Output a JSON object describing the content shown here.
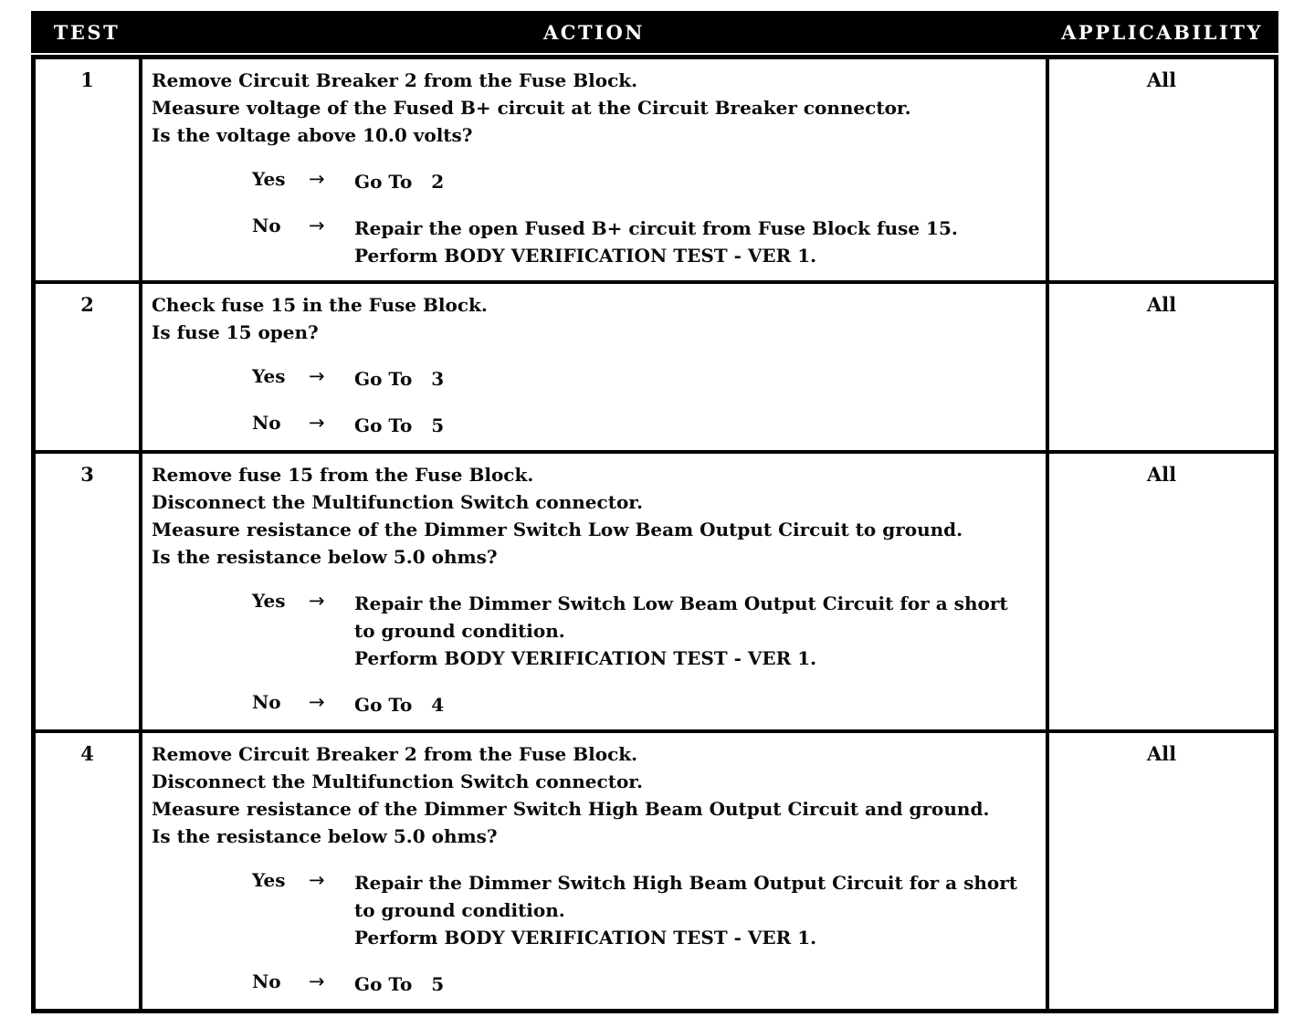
{
  "icons": {
    "arrow": "→"
  },
  "table": {
    "headers": [
      "TEST",
      "ACTION",
      "APPLICABILITY"
    ],
    "rows": [
      {
        "test": "1",
        "applicability": "All",
        "statements": [
          "Remove Circuit Breaker 2 from the Fuse Block.",
          "Measure voltage of the Fused B+ circuit at the Circuit Breaker connector.",
          "Is the voltage above 10.0 volts?"
        ],
        "decisions": [
          {
            "label": "Yes",
            "result": [
              "Go To   2"
            ]
          },
          {
            "label": "No",
            "result": [
              "Repair the open Fused B+ circuit from Fuse Block fuse 15.",
              "Perform BODY VERIFICATION TEST - VER 1."
            ]
          }
        ]
      },
      {
        "test": "2",
        "applicability": "All",
        "statements": [
          "Check fuse 15 in the Fuse Block.",
          "Is fuse 15 open?"
        ],
        "decisions": [
          {
            "label": "Yes",
            "result": [
              "Go To   3"
            ]
          },
          {
            "label": "No",
            "result": [
              "Go To   5"
            ]
          }
        ]
      },
      {
        "test": "3",
        "applicability": "All",
        "statements": [
          "Remove fuse 15 from the Fuse Block.",
          "Disconnect the Multifunction Switch connector.",
          "Measure resistance of the Dimmer Switch Low Beam Output Circuit to ground.",
          "Is the resistance below 5.0 ohms?"
        ],
        "decisions": [
          {
            "label": "Yes",
            "result": [
              "Repair the Dimmer Switch Low Beam Output Circuit for a short",
              "to ground condition.",
              "Perform BODY VERIFICATION TEST - VER 1."
            ]
          },
          {
            "label": "No",
            "result": [
              "Go To   4"
            ]
          }
        ]
      },
      {
        "test": "4",
        "applicability": "All",
        "statements": [
          "Remove Circuit Breaker 2 from the Fuse Block.",
          "Disconnect the Multifunction Switch connector.",
          "Measure resistance of the Dimmer Switch High Beam Output Circuit and ground.",
          "Is the resistance below 5.0 ohms?"
        ],
        "decisions": [
          {
            "label": "Yes",
            "result": [
              "Repair the Dimmer Switch High Beam Output Circuit for a short",
              "to ground condition.",
              "Perform BODY VERIFICATION TEST - VER 1."
            ]
          },
          {
            "label": "No",
            "result": [
              "Go To   5"
            ]
          }
        ]
      }
    ]
  }
}
